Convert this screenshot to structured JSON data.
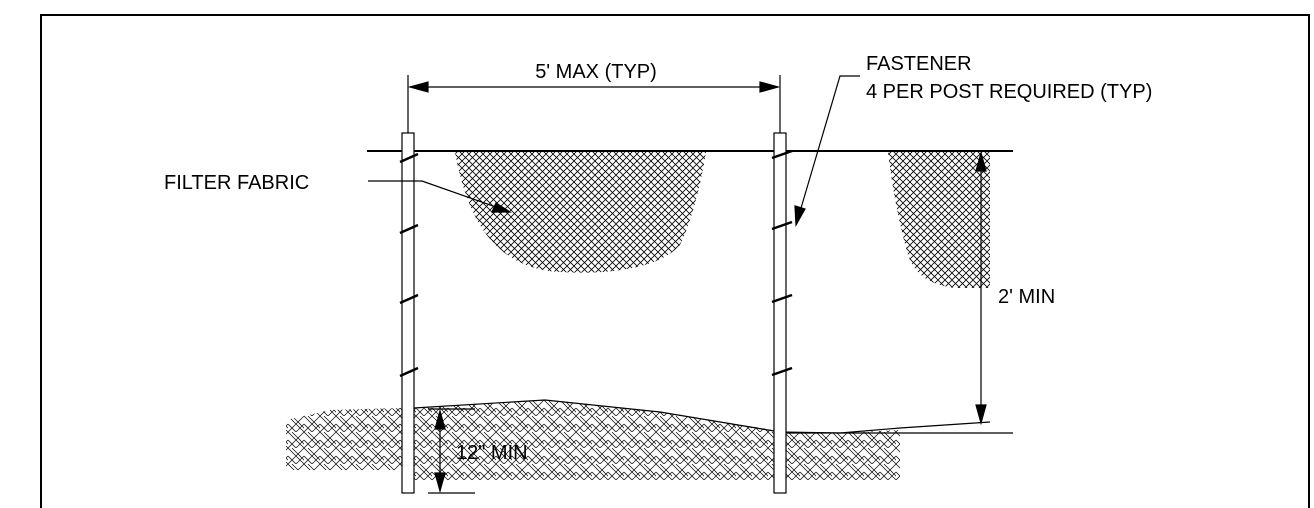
{
  "labels": {
    "spacing": "5' MAX (TYP)",
    "fastener_line1": "FASTENER",
    "fastener_line2": "4 PER POST REQUIRED (TYP)",
    "filter_fabric": "FILTER FABRIC",
    "height_min": "2' MIN",
    "embed_min": "12\" MIN"
  }
}
